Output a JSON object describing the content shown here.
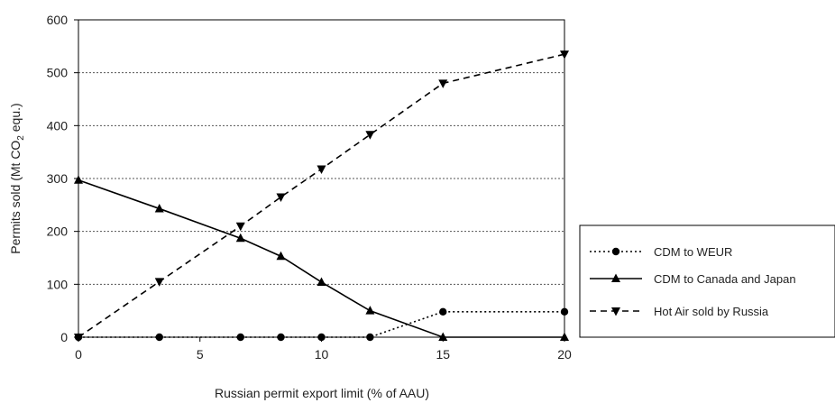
{
  "chart_data": {
    "type": "line",
    "xlabel": "Russian permit export limit (% of AAU)",
    "ylabel": {
      "prefix": "Permits sold (Mt CO",
      "sub": "2",
      "suffix": " equ.)"
    },
    "xlim": [
      0,
      20
    ],
    "ylim": [
      0,
      600
    ],
    "xticks": [
      0,
      5,
      10,
      15,
      20
    ],
    "yticks": [
      0,
      100,
      200,
      300,
      400,
      500,
      600
    ],
    "grid": "horizontal dotted",
    "legend_position": "right",
    "series": [
      {
        "name": "CDM to WEUR",
        "line": "dotted",
        "marker": "circle",
        "x": [
          0,
          3.33,
          6.67,
          8.33,
          10,
          12,
          15,
          20
        ],
        "y": [
          0,
          0,
          0,
          0,
          0,
          0,
          48,
          48
        ]
      },
      {
        "name": "CDM to Canada and Japan",
        "line": "solid",
        "marker": "triangle-up",
        "x": [
          0,
          3.33,
          6.67,
          8.33,
          10,
          12,
          15,
          20
        ],
        "y": [
          297,
          243,
          187,
          153,
          104,
          50,
          0,
          0
        ]
      },
      {
        "name": "Hot Air sold by Russia",
        "line": "dashed",
        "marker": "triangle-down",
        "x": [
          0,
          3.33,
          6.67,
          8.33,
          10,
          12,
          15,
          20
        ],
        "y": [
          0,
          105,
          210,
          265,
          318,
          383,
          480,
          535
        ]
      }
    ]
  }
}
